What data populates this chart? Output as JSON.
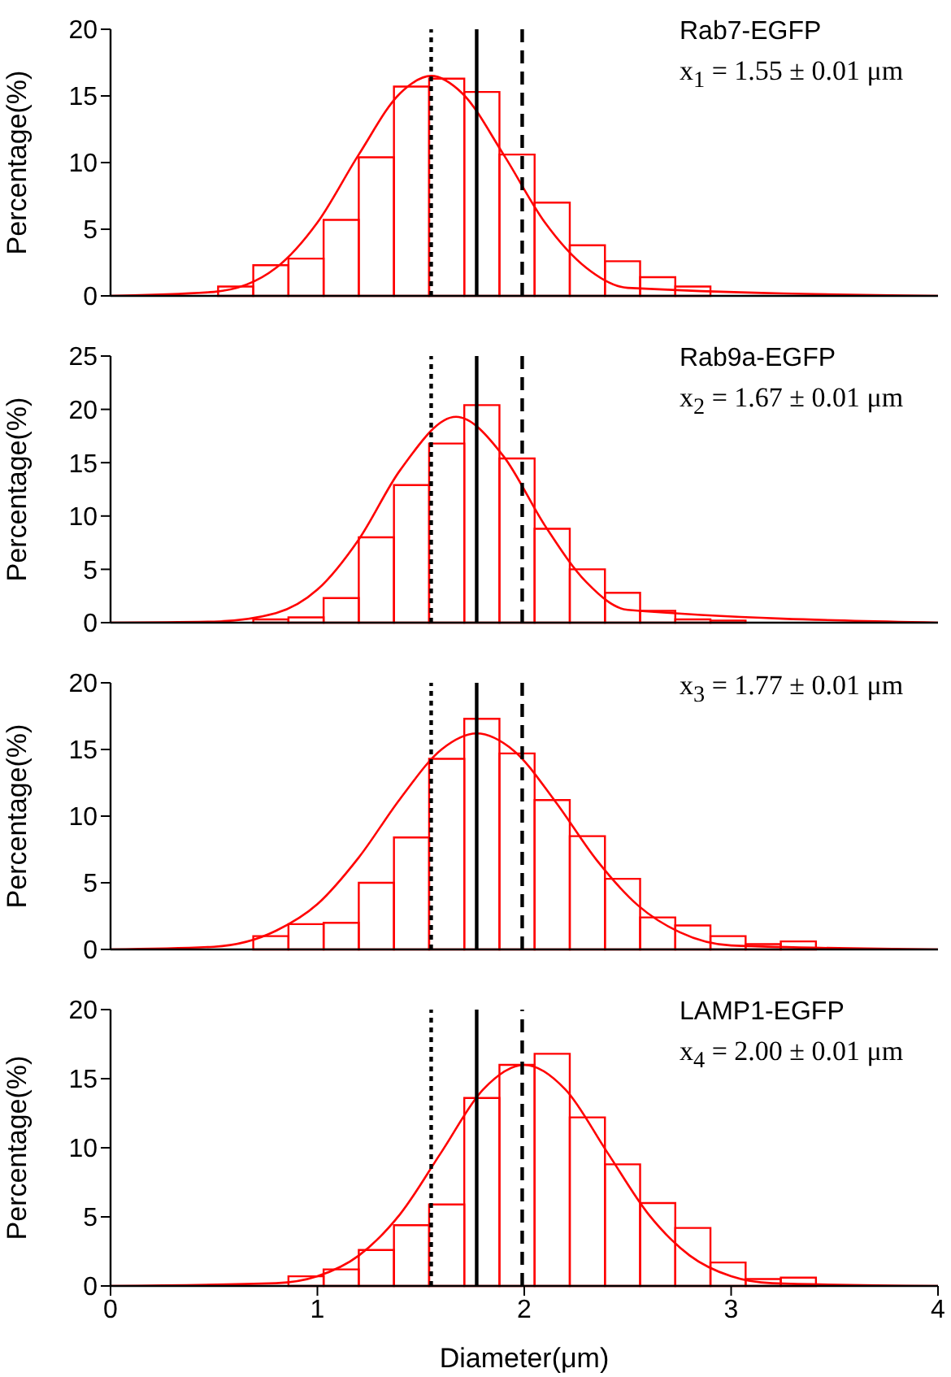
{
  "chart_data": [
    {
      "type": "histogram",
      "ylabel": "Percentage(%)",
      "annotations": [
        "Rab7-EGFP",
        "x$_{1}$ = 1.55 ± 0.01 μm"
      ],
      "color": "#ff0000",
      "bins": [
        0.52,
        0.69,
        0.86,
        1.03,
        1.2,
        1.37,
        1.54,
        1.71,
        1.88,
        2.05,
        2.22,
        2.39,
        2.56,
        2.73,
        2.9
      ],
      "values": [
        0.7,
        2.3,
        2.8,
        5.7,
        10.4,
        15.7,
        16.3,
        15.3,
        10.6,
        7.0,
        3.8,
        2.6,
        1.4,
        0.7
      ],
      "series": [
        {
          "type": "line",
          "color": "#ff0000",
          "x": [
            0,
            0.5,
            0.8,
            1.0,
            1.2,
            1.4,
            1.55,
            1.7,
            1.9,
            2.1,
            2.3,
            2.5,
            4
          ],
          "values": [
            0,
            0.3,
            2.1,
            5.5,
            10.6,
            15.2,
            16.5,
            15.2,
            10.6,
            5.5,
            2.1,
            0.6,
            0
          ]
        }
      ],
      "xlim": [
        0,
        4
      ],
      "xticks": [
        0,
        1,
        2,
        3,
        4
      ],
      "ylim": [
        0,
        20
      ],
      "yticks": [
        0,
        5,
        10,
        15,
        20
      ],
      "tick_labels": "y",
      "grid": false,
      "legend": false,
      "ref_lines": [
        {
          "axis": "x",
          "value": 1.55,
          "color": "#000000",
          "line_style": "dotted"
        },
        {
          "axis": "x",
          "value": 1.77,
          "color": "#000000",
          "line_style": "solid"
        },
        {
          "axis": "x",
          "value": 1.99,
          "color": "#000000",
          "line_style": "dashed"
        }
      ]
    },
    {
      "type": "histogram",
      "ylabel": "Percentage(%)",
      "annotations": [
        "Rab9a-EGFP",
        "x$_{2}$ = 1.67 ± 0.01 μm"
      ],
      "color": "#ff0000",
      "bins": [
        0.69,
        0.86,
        1.03,
        1.2,
        1.37,
        1.54,
        1.71,
        1.88,
        2.05,
        2.22,
        2.39,
        2.56,
        2.73,
        2.9,
        3.07
      ],
      "values": [
        0.3,
        0.5,
        2.3,
        8.0,
        12.9,
        16.8,
        20.4,
        15.4,
        8.8,
        5.0,
        2.8,
        1.1,
        0.3,
        0.2
      ],
      "series": [
        {
          "type": "line",
          "color": "#ff0000",
          "x": [
            0,
            0.5,
            0.8,
            1.0,
            1.2,
            1.4,
            1.67,
            1.9,
            2.1,
            2.3,
            2.5,
            4
          ],
          "values": [
            0,
            0.1,
            0.9,
            3.1,
            7.8,
            14.3,
            19.3,
            15.6,
            9.1,
            3.8,
            1.2,
            0
          ]
        }
      ],
      "xlim": [
        0,
        4
      ],
      "xticks": [
        0,
        1,
        2,
        3,
        4
      ],
      "ylim": [
        0,
        25
      ],
      "yticks": [
        0,
        5,
        10,
        15,
        20,
        25
      ],
      "tick_labels": "y",
      "grid": false,
      "legend": false,
      "ref_lines": [
        {
          "axis": "x",
          "value": 1.55,
          "color": "#000000",
          "line_style": "dotted"
        },
        {
          "axis": "x",
          "value": 1.77,
          "color": "#000000",
          "line_style": "solid"
        },
        {
          "axis": "x",
          "value": 1.99,
          "color": "#000000",
          "line_style": "dashed"
        }
      ]
    },
    {
      "type": "histogram",
      "ylabel": "Percentage(%)",
      "annotations": [
        "x$_{3}$ = 1.77 ± 0.01 μm"
      ],
      "color": "#ff0000",
      "bins": [
        0.69,
        0.86,
        1.03,
        1.2,
        1.37,
        1.54,
        1.71,
        1.88,
        2.05,
        2.22,
        2.39,
        2.56,
        2.73,
        2.9,
        3.07,
        3.24,
        3.41
      ],
      "values": [
        1.0,
        1.9,
        2.0,
        5.0,
        8.4,
        14.3,
        17.3,
        14.7,
        11.2,
        8.5,
        5.3,
        2.4,
        1.8,
        1.0,
        0.4,
        0.6
      ],
      "series": [
        {
          "type": "line",
          "color": "#ff0000",
          "x": [
            0,
            0.5,
            0.8,
            1.0,
            1.2,
            1.4,
            1.6,
            1.77,
            1.95,
            2.15,
            2.35,
            2.55,
            2.75,
            3.0,
            4
          ],
          "values": [
            0,
            0.2,
            1.4,
            3.4,
            6.9,
            11.3,
            15.0,
            16.2,
            14.9,
            11.1,
            6.7,
            3.3,
            1.3,
            0.3,
            0
          ]
        }
      ],
      "xlim": [
        0,
        4
      ],
      "xticks": [
        0,
        1,
        2,
        3,
        4
      ],
      "ylim": [
        0,
        20
      ],
      "yticks": [
        0,
        5,
        10,
        15,
        20
      ],
      "tick_labels": "y",
      "grid": false,
      "legend": false,
      "ref_lines": [
        {
          "axis": "x",
          "value": 1.55,
          "color": "#000000",
          "line_style": "dotted"
        },
        {
          "axis": "x",
          "value": 1.77,
          "color": "#000000",
          "line_style": "solid"
        },
        {
          "axis": "x",
          "value": 1.99,
          "color": "#000000",
          "line_style": "dashed"
        }
      ]
    },
    {
      "type": "histogram",
      "xlabel": "Diameter(μm)",
      "ylabel": "Percentage(%)",
      "annotations": [
        "LAMP1-EGFP",
        "x$_{4}$ = 2.00 ± 0.01 μm"
      ],
      "color": "#ff0000",
      "bins": [
        0.86,
        1.03,
        1.2,
        1.37,
        1.54,
        1.71,
        1.88,
        2.05,
        2.22,
        2.39,
        2.56,
        2.73,
        2.9,
        3.07,
        3.24,
        3.41
      ],
      "values": [
        0.7,
        1.2,
        2.6,
        4.4,
        5.9,
        13.6,
        16.0,
        16.8,
        12.2,
        8.8,
        6.0,
        4.2,
        1.7,
        0.5,
        0.6
      ],
      "series": [
        {
          "type": "line",
          "color": "#ff0000",
          "x": [
            0,
            0.8,
            1.0,
            1.2,
            1.4,
            1.6,
            1.8,
            2.0,
            2.2,
            2.4,
            2.6,
            2.8,
            3.0,
            3.2,
            4
          ],
          "values": [
            0,
            0.2,
            0.7,
            2.2,
            5.2,
            9.7,
            14.2,
            16.0,
            14.2,
            9.7,
            5.2,
            2.2,
            0.7,
            0.2,
            0
          ]
        }
      ],
      "xlim": [
        0,
        4
      ],
      "xticks": [
        0,
        1,
        2,
        3,
        4
      ],
      "ylim": [
        0,
        20
      ],
      "yticks": [
        0,
        5,
        10,
        15,
        20
      ],
      "grid": false,
      "legend": false,
      "ref_lines": [
        {
          "axis": "x",
          "value": 1.55,
          "color": "#000000",
          "line_style": "dotted"
        },
        {
          "axis": "x",
          "value": 1.77,
          "color": "#000000",
          "line_style": "solid"
        },
        {
          "axis": "x",
          "value": 1.99,
          "color": "#000000",
          "line_style": "dashed"
        }
      ]
    }
  ]
}
